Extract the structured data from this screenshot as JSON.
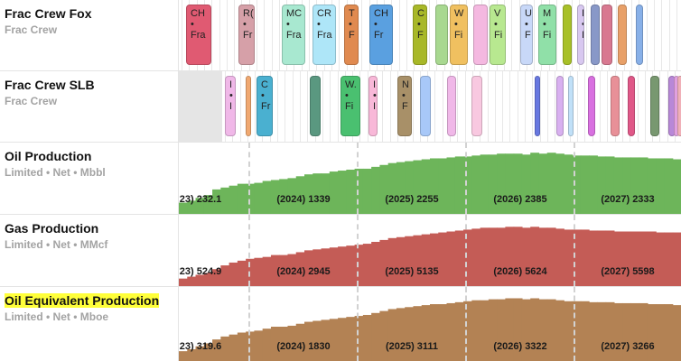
{
  "rows": {
    "fox": {
      "title": "Frac Crew Fox",
      "subtitle": "Frac Crew"
    },
    "slb": {
      "title": "Frac Crew SLB",
      "subtitle": "Frac Crew"
    },
    "oil": {
      "title": "Oil Production",
      "subtitle": "Limited • Net • Mbbl",
      "color": "#6db55a"
    },
    "gas": {
      "title": "Gas Production",
      "subtitle": "Limited • Net • MMcf",
      "color": "#c45c56"
    },
    "oe": {
      "title": "Oil Equivalent Production",
      "subtitle": "Limited • Net • Mboe",
      "color": "#b38254",
      "highlight": "#ffff3a"
    }
  },
  "fox_pills": [
    {
      "text": "CH\n•\nFra",
      "color": "#e05a72"
    },
    {
      "text": "R(\n•\nFr",
      "color": "#d6a0a8"
    },
    {
      "text": "MC\n•\nFra",
      "color": "#a8e8d0"
    },
    {
      "text": "CR\n•\nFra",
      "color": "#aee6f8"
    },
    {
      "text": "T\n•\nF",
      "color": "#e08a50"
    },
    {
      "text": "CH\n•\nFr",
      "color": "#5aa0e0"
    },
    {
      "text": "C\n•\nF",
      "color": "#a8b828"
    },
    {
      "text": "",
      "color": "#a8d890"
    },
    {
      "text": "W\n•\nFi",
      "color": "#f0c060"
    },
    {
      "text": "",
      "color": "#f4b8e0"
    },
    {
      "text": "V\n•\nFi",
      "color": "#b8e890"
    },
    {
      "text": "U\n•\nF",
      "color": "#c8d8f8"
    },
    {
      "text": "M\n•\nFi",
      "color": "#90e0a8"
    },
    {
      "text": "",
      "color": "#a8c028"
    },
    {
      "text": "I\n•\nI",
      "color": "#d8c8f0"
    },
    {
      "text": "",
      "color": "#8898c8"
    },
    {
      "text": "",
      "color": "#d87890"
    },
    {
      "text": "",
      "color": "#e8a068"
    },
    {
      "text": "",
      "color": "#88b0e8"
    }
  ],
  "slb_pills": [
    {
      "text": "I\n•\nI",
      "color": "#f0b8e8"
    },
    {
      "text": "",
      "color": "#f0a870"
    },
    {
      "text": "C\n•\nFr",
      "color": "#4ab0d0"
    },
    {
      "text": "",
      "color": "#5a9880"
    },
    {
      "text": "W.\n•\nFi",
      "color": "#4ac070"
    },
    {
      "text": "I\n•\nI",
      "color": "#f8b8d8"
    },
    {
      "text": "N\n•\nF",
      "color": "#a89068"
    },
    {
      "text": "",
      "color": "#a8c8f8"
    },
    {
      "text": "",
      "color": "#f0b8e8"
    },
    {
      "text": "",
      "color": "#f8c8e0"
    },
    {
      "text": "",
      "color": "#6878e0"
    },
    {
      "text": "",
      "color": "#d8b0f0"
    },
    {
      "text": "",
      "color": "#c0e0f8"
    },
    {
      "text": "",
      "color": "#d870e0"
    },
    {
      "text": "",
      "color": "#e89098"
    },
    {
      "text": "",
      "color": "#e05888"
    },
    {
      "text": "",
      "color": "#789870"
    },
    {
      "text": "",
      "color": "#b888d8"
    },
    {
      "text": "",
      "color": "#e0a0e0"
    },
    {
      "text": "",
      "color": "#f0b0b8"
    }
  ],
  "chart_data": [
    {
      "type": "area",
      "title": "Oil Production",
      "units": "Mbbl",
      "color": "#6db55a",
      "annual_totals": [
        {
          "label": "23) 232.1",
          "value": 232.1
        },
        {
          "label": "(2024) 1339",
          "value": 1339
        },
        {
          "label": "(2025) 2255",
          "value": 2255
        },
        {
          "label": "(2026) 2385",
          "value": 2385
        },
        {
          "label": "(2027) 2333",
          "value": 2333
        }
      ],
      "monthly_values": [
        12,
        14,
        17,
        20,
        26,
        28,
        30,
        32,
        32,
        33,
        35,
        36,
        37,
        38,
        40,
        42,
        43,
        43,
        45,
        46,
        47,
        48,
        48,
        50,
        52,
        54,
        55,
        56,
        57,
        58,
        59,
        59,
        60,
        61,
        61,
        62,
        63,
        63,
        64,
        64,
        64,
        63,
        65,
        64,
        65,
        64,
        63,
        62,
        62,
        62,
        61,
        61,
        60,
        60,
        60,
        60,
        59,
        59,
        59,
        58
      ]
    },
    {
      "type": "area",
      "title": "Gas Production",
      "units": "MMcf",
      "color": "#c45c56",
      "annual_totals": [
        {
          "label": "23) 524.9",
          "value": 524.9
        },
        {
          "label": "(2024) 2945",
          "value": 2945
        },
        {
          "label": "(2025) 5135",
          "value": 5135
        },
        {
          "label": "(2026) 5624",
          "value": 5624
        },
        {
          "label": "(2027) 5598",
          "value": 5598
        }
      ],
      "monthly_values": [
        8,
        10,
        12,
        14,
        18,
        22,
        25,
        27,
        29,
        30,
        31,
        33,
        33,
        34,
        36,
        38,
        39,
        40,
        41,
        42,
        43,
        44,
        45,
        47,
        49,
        51,
        52,
        53,
        54,
        55,
        56,
        57,
        58,
        59,
        60,
        61,
        62,
        62,
        62,
        63,
        63,
        62,
        63,
        62,
        62,
        61,
        60,
        60,
        60,
        59,
        59,
        59,
        58,
        58,
        58,
        58,
        58,
        57,
        57,
        57
      ]
    },
    {
      "type": "area",
      "title": "Oil Equivalent Production",
      "units": "Mboe",
      "color": "#b38254",
      "annual_totals": [
        {
          "label": "23) 319.6",
          "value": 319.6
        },
        {
          "label": "(2024) 1830",
          "value": 1830
        },
        {
          "label": "(2025) 3111",
          "value": 3111
        },
        {
          "label": "(2026) 3322",
          "value": 3322
        },
        {
          "label": "(2027) 3266",
          "value": 3266
        }
      ],
      "monthly_values": [
        10,
        12,
        15,
        18,
        22,
        25,
        27,
        29,
        30,
        31,
        33,
        35,
        35,
        36,
        38,
        40,
        41,
        42,
        43,
        44,
        45,
        46,
        47,
        49,
        51,
        53,
        54,
        55,
        56,
        57,
        58,
        58,
        59,
        60,
        61,
        62,
        62,
        63,
        63,
        64,
        64,
        63,
        64,
        63,
        63,
        62,
        61,
        61,
        61,
        60,
        60,
        60,
        59,
        59,
        59,
        59,
        58,
        58,
        58,
        57
      ]
    }
  ]
}
